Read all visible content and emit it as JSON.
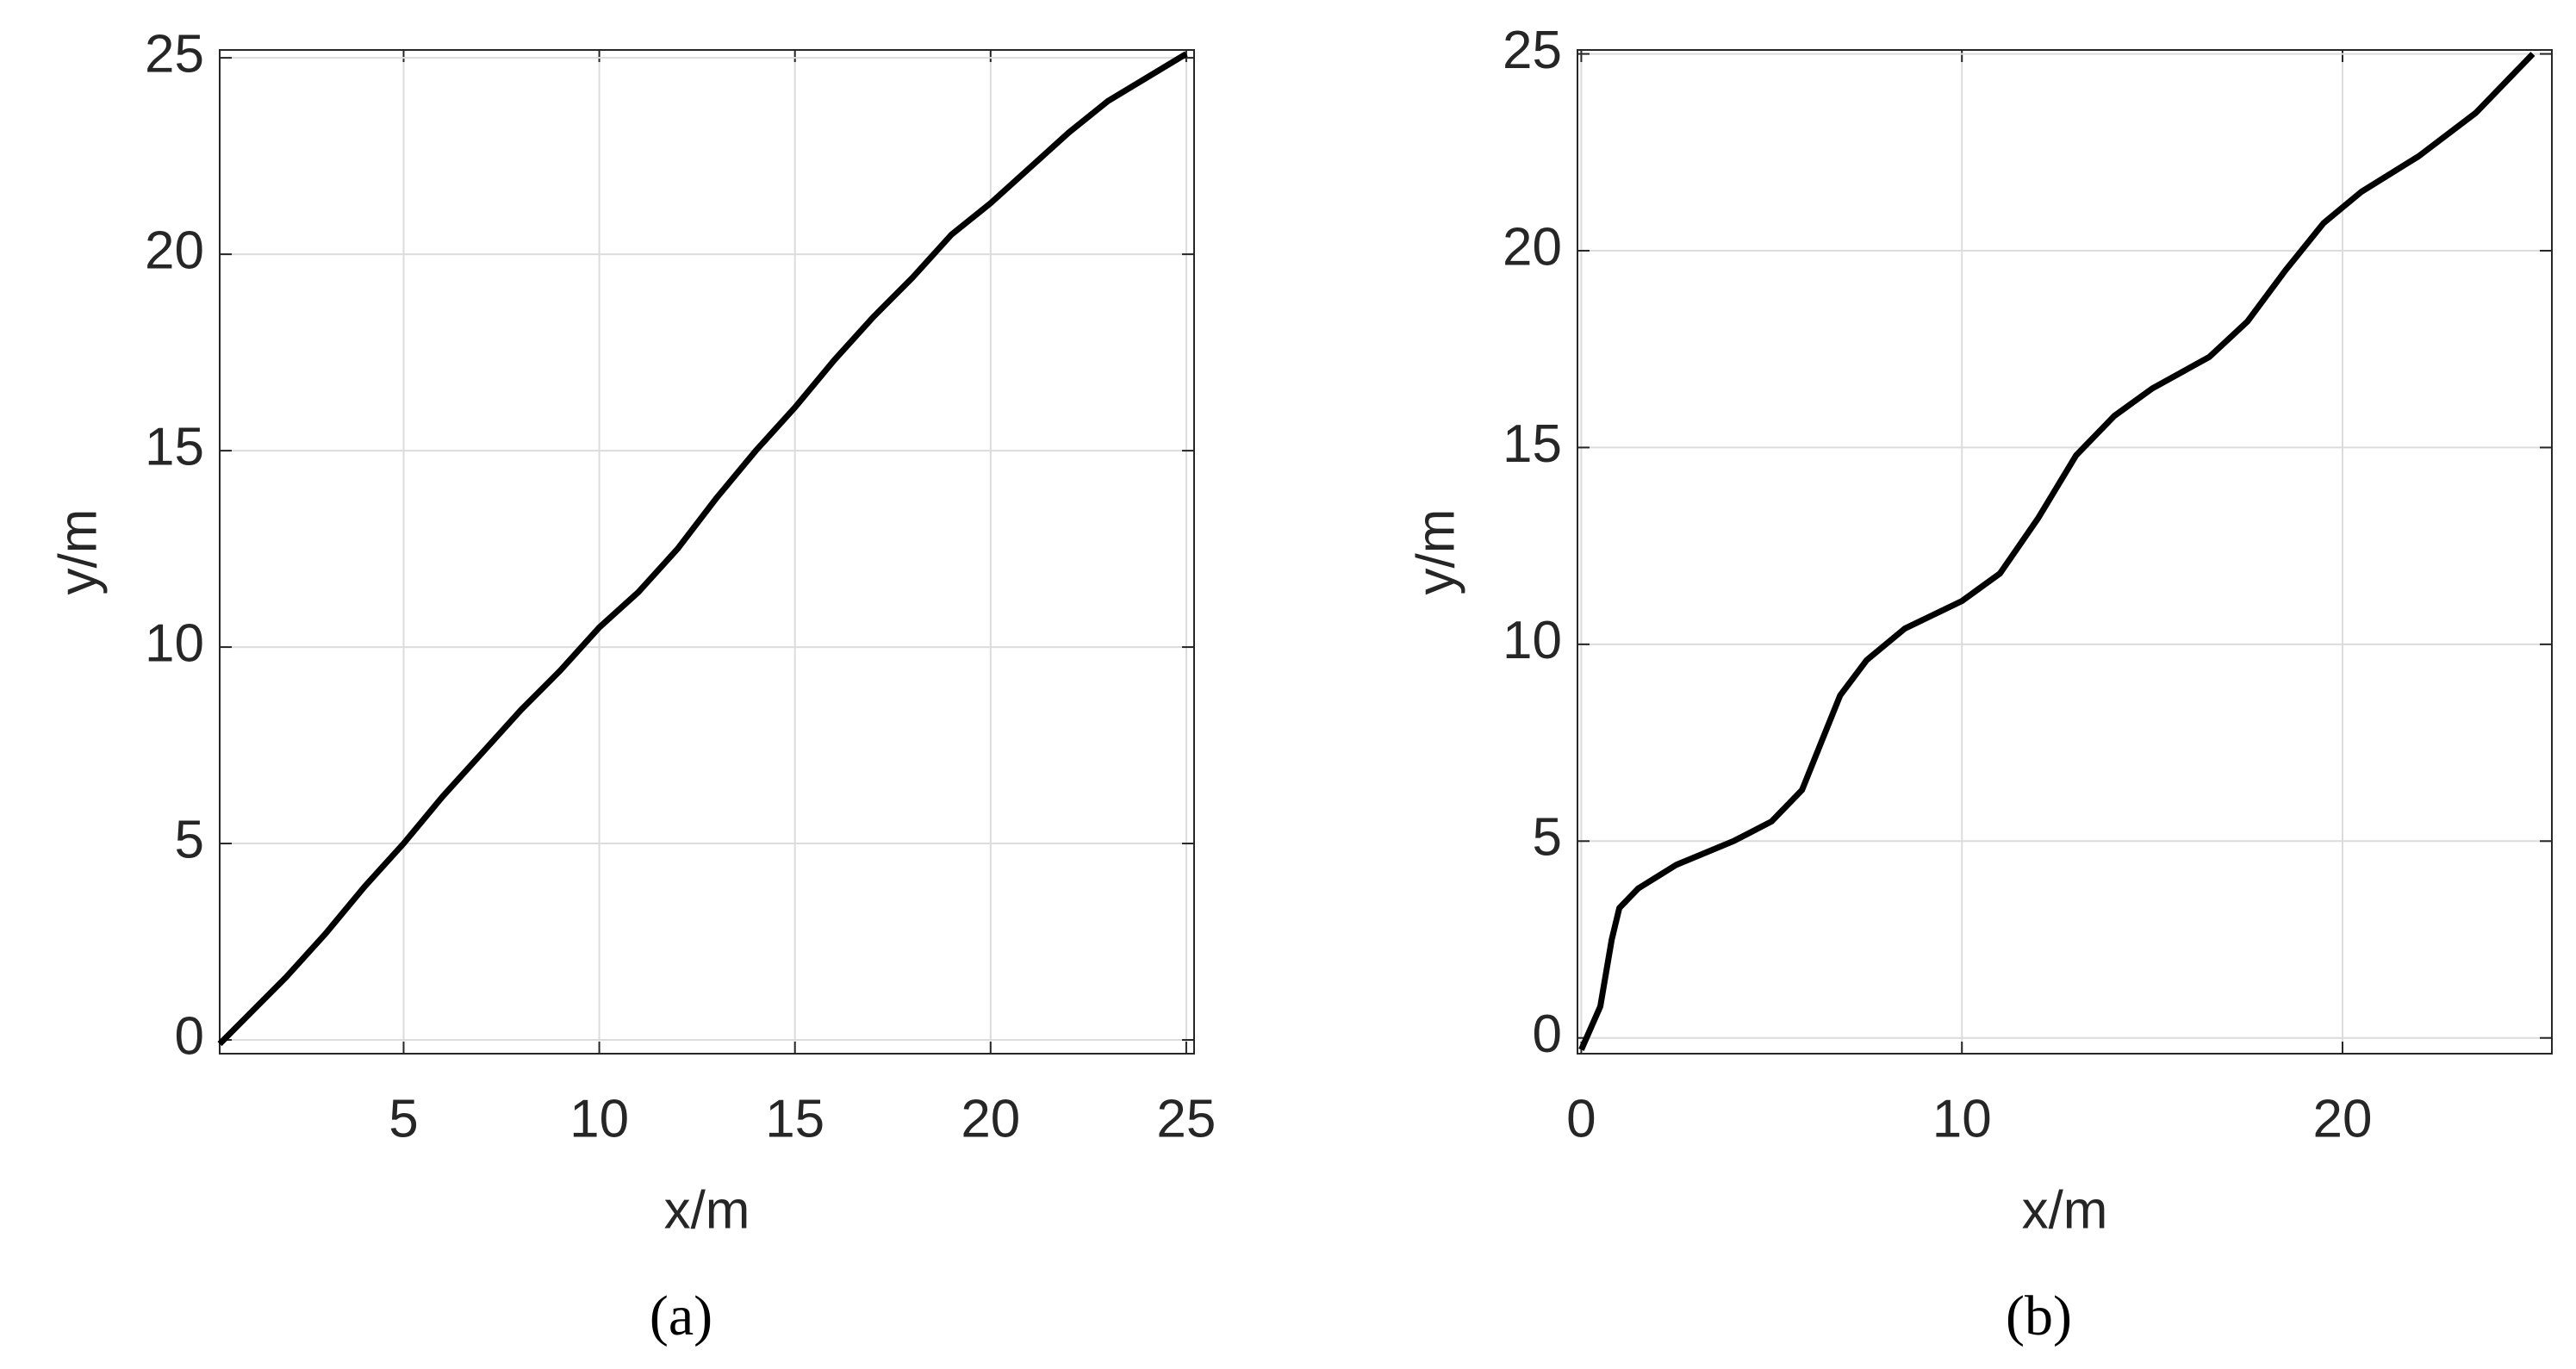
{
  "chart_data": [
    {
      "type": "line",
      "caption": "(a)",
      "xlabel": "x/m",
      "ylabel": "y/m",
      "x": [
        0.3,
        1,
        2,
        3,
        4,
        5,
        6,
        7,
        8,
        9,
        10,
        11,
        12,
        13,
        14,
        15,
        16,
        17,
        18,
        19,
        20,
        21,
        22,
        23,
        24,
        25
      ],
      "series": [
        {
          "color": "#000000",
          "values": [
            -0.1,
            0.6,
            1.6,
            2.7,
            3.9,
            5.0,
            6.2,
            7.3,
            8.4,
            9.4,
            10.5,
            11.4,
            12.5,
            13.8,
            15.0,
            16.1,
            17.3,
            18.4,
            19.4,
            20.5,
            21.3,
            22.2,
            23.1,
            23.9,
            24.5,
            25.1
          ]
        }
      ],
      "xlim": [
        0.3,
        25.2
      ],
      "ylim": [
        -0.35,
        25.2
      ],
      "xticks": [
        5,
        10,
        15,
        20,
        25
      ],
      "yticks": [
        0,
        5,
        10,
        15,
        20,
        25
      ],
      "grid": true
    },
    {
      "type": "line",
      "caption": "(b)",
      "xlabel": "x/m",
      "ylabel": "y/m",
      "x": [
        0,
        0.5,
        0.8,
        1,
        1.5,
        2.5,
        4,
        5,
        5.8,
        6.3,
        6.8,
        7.5,
        8.5,
        10,
        11,
        12,
        13,
        14,
        15,
        16.5,
        17.5,
        18.5,
        19.5,
        20.5,
        22,
        23.5,
        25
      ],
      "series": [
        {
          "color": "#000000",
          "values": [
            -0.3,
            0.8,
            2.5,
            3.3,
            3.8,
            4.4,
            5.0,
            5.5,
            6.3,
            7.5,
            8.7,
            9.6,
            10.4,
            11.1,
            11.8,
            13.2,
            14.8,
            15.8,
            16.5,
            17.3,
            18.2,
            19.5,
            20.7,
            21.5,
            22.4,
            23.5,
            25.0
          ]
        }
      ],
      "xlim": [
        -0.1,
        25.5
      ],
      "ylim": [
        -0.4,
        25.1
      ],
      "xticks": [
        0,
        10,
        20
      ],
      "yticks": [
        0,
        5,
        10,
        15,
        20,
        25
      ],
      "grid": true
    }
  ]
}
